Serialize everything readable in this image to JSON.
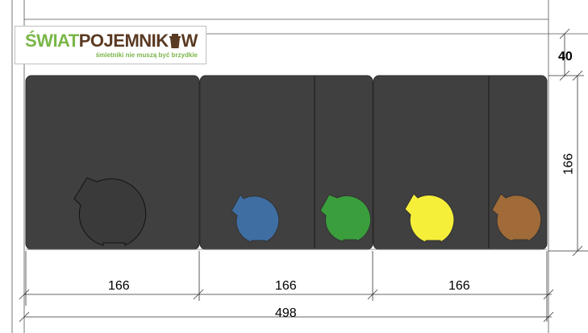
{
  "logo": {
    "part1": "ŚWIAT",
    "part2": "POJEMNIK",
    "part3": "W",
    "tagline": "śmietniki nie muszą być brzydkie",
    "green": "#7ab648",
    "brown": "#5a3a22"
  },
  "dimensions": {
    "top_height": "40",
    "box_height": "166",
    "section1_width": "166",
    "section2_width": "166",
    "section3_width": "166",
    "total_width": "498"
  },
  "colors": {
    "enclosure": "#404040",
    "bin_black": "#3a3a3a",
    "bin_blue": "#3f6ea3",
    "bin_green": "#3a9e3d",
    "bin_yellow": "#f6ef3a",
    "bin_brown": "#a06b38"
  },
  "bins": [
    {
      "name": "black-bin",
      "color_key": "bin_black"
    },
    {
      "name": "blue-bin",
      "color_key": "bin_blue"
    },
    {
      "name": "green-bin",
      "color_key": "bin_green"
    },
    {
      "name": "yellow-bin",
      "color_key": "bin_yellow"
    },
    {
      "name": "brown-bin",
      "color_key": "bin_brown"
    }
  ]
}
